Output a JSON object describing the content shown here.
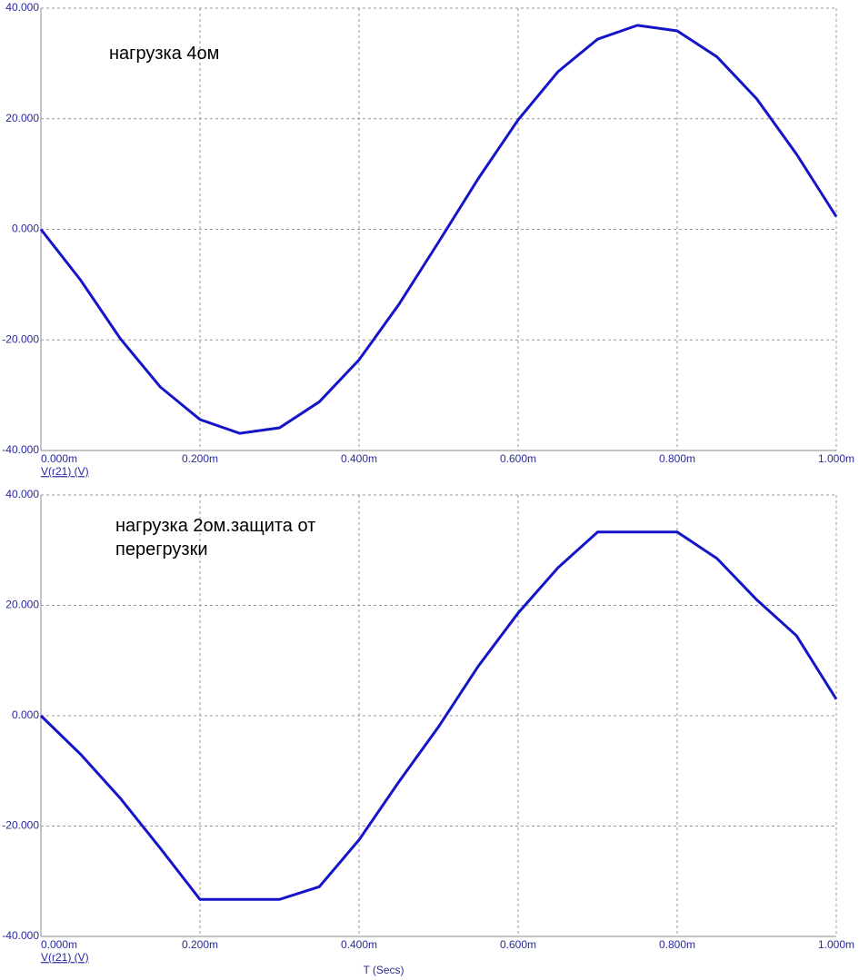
{
  "chart_data": [
    {
      "type": "line",
      "annotation": "нагрузка 4ом",
      "x": [
        0,
        0.05,
        0.1,
        0.15,
        0.2,
        0.25,
        0.3,
        0.35,
        0.4,
        0.45,
        0.5,
        0.55,
        0.6,
        0.65,
        0.7,
        0.75,
        0.8,
        0.85,
        0.9,
        0.95,
        1.0
      ],
      "series": [
        {
          "name": "V(r21) (V)",
          "color": "#1414c8",
          "values": [
            0,
            -9.2,
            -19.8,
            -28.5,
            -34.4,
            -36.9,
            -35.9,
            -31.2,
            -23.6,
            -13.6,
            -2.3,
            9.2,
            19.8,
            28.5,
            34.4,
            36.9,
            35.9,
            31.2,
            23.6,
            13.6,
            2.3
          ]
        }
      ],
      "xlim": [
        0,
        1.0
      ],
      "xticks": [
        {
          "value": 0,
          "label": "0.000m"
        },
        {
          "value": 0.2,
          "label": "0.200m"
        },
        {
          "value": 0.4,
          "label": "0.400m"
        },
        {
          "value": 0.6,
          "label": "0.600m"
        },
        {
          "value": 0.8,
          "label": "0.800m"
        },
        {
          "value": 1.0,
          "label": "1.000m"
        }
      ],
      "ylim": [
        -40,
        40
      ],
      "yticks": [
        {
          "value": -40,
          "label": "-40.000"
        },
        {
          "value": -20,
          "label": "-20.000"
        },
        {
          "value": 0,
          "label": "0.000"
        },
        {
          "value": 20,
          "label": "20.000"
        },
        {
          "value": 40,
          "label": "40.000"
        }
      ],
      "grid": true
    },
    {
      "type": "line",
      "annotation": "нагрузка 2ом.защита от перегрузки",
      "x_label": "T (Secs)",
      "x": [
        0,
        0.05,
        0.1,
        0.15,
        0.2,
        0.25,
        0.3,
        0.35,
        0.4,
        0.45,
        0.5,
        0.55,
        0.6,
        0.65,
        0.7,
        0.75,
        0.8,
        0.85,
        0.9,
        0.95,
        1.0
      ],
      "series": [
        {
          "name": "V(r21) (V)",
          "color": "#1414c8",
          "values": [
            0,
            -7,
            -15,
            -24,
            -33.3,
            -33.3,
            -33.3,
            -31,
            -22.5,
            -12,
            -2,
            9,
            18.6,
            26.8,
            33.3,
            33.3,
            33.3,
            28.5,
            21,
            14.5,
            3
          ]
        }
      ],
      "xlim": [
        0,
        1.0
      ],
      "xticks": [
        {
          "value": 0,
          "label": "0.000m"
        },
        {
          "value": 0.2,
          "label": "0.200m"
        },
        {
          "value": 0.4,
          "label": "0.400m"
        },
        {
          "value": 0.6,
          "label": "0.600m"
        },
        {
          "value": 0.8,
          "label": "0.800m"
        },
        {
          "value": 1.0,
          "label": "1.000m"
        }
      ],
      "ylim": [
        -40,
        40
      ],
      "yticks": [
        {
          "value": -40,
          "label": "-40.000"
        },
        {
          "value": -20,
          "label": "-20.000"
        },
        {
          "value": 0,
          "label": "0.000"
        },
        {
          "value": 20,
          "label": "20.000"
        },
        {
          "value": 40,
          "label": "40.000"
        }
      ],
      "grid": true
    }
  ]
}
